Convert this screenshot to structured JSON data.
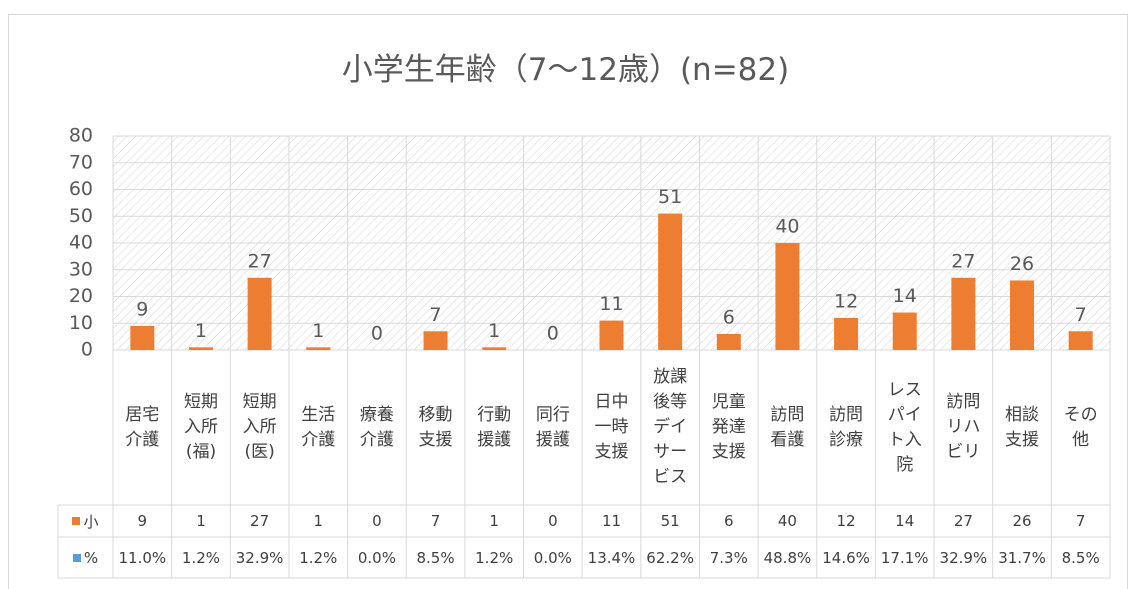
{
  "chart_data": {
    "type": "bar",
    "title": "小学生年齢（7～12歳）(n=82)",
    "categories": [
      "居宅介護",
      "短期入所(福)",
      "短期入所(医)",
      "生活介護",
      "療養介護",
      "移動支援",
      "行動援護",
      "同行援護",
      "日中一時支援",
      "放課後等デイサービス",
      "児童発達支援",
      "訪問看護",
      "訪問診療",
      "レスパイト入院",
      "訪問リハビリ",
      "相談支援",
      "その他"
    ],
    "series": [
      {
        "name": "小",
        "color": "#ED7D31",
        "values": [
          9,
          1,
          27,
          1,
          0,
          7,
          1,
          0,
          11,
          51,
          6,
          40,
          12,
          14,
          27,
          26,
          7
        ]
      },
      {
        "name": "%",
        "color": "#5B9BD5",
        "values": [
          11.0,
          1.2,
          32.9,
          1.2,
          0.0,
          8.5,
          1.2,
          0.0,
          13.4,
          62.2,
          7.3,
          48.8,
          14.6,
          17.1,
          32.9,
          31.7,
          8.5
        ],
        "value_labels": [
          "11.0%",
          "1.2%",
          "32.9%",
          "1.2%",
          "0.0%",
          "8.5%",
          "1.2%",
          "0.0%",
          "13.4%",
          "62.2%",
          "7.3%",
          "48.8%",
          "14.6%",
          "17.1%",
          "32.9%",
          "31.7%",
          "8.5%"
        ]
      }
    ],
    "ylim": [
      0,
      80
    ],
    "yticks": [
      0,
      10,
      20,
      30,
      40,
      50,
      60,
      70,
      80
    ],
    "grid": true
  }
}
